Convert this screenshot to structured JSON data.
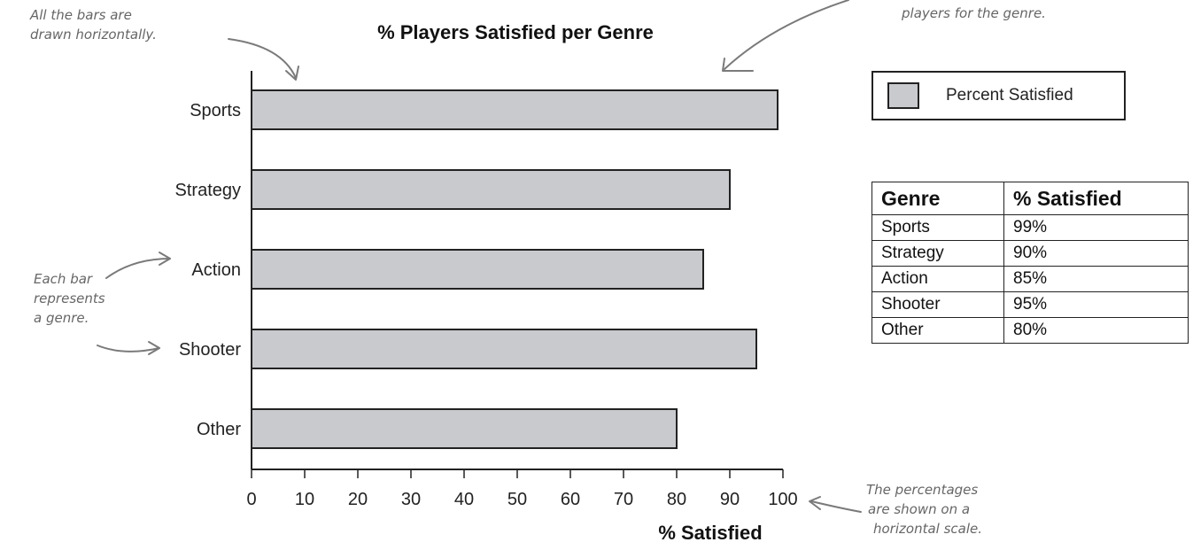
{
  "chart_data": {
    "type": "bar",
    "orientation": "horizontal",
    "title": "% Players Satisfied per Genre",
    "xlabel": "% Satisfied",
    "categories": [
      "Sports",
      "Strategy",
      "Action",
      "Shooter",
      "Other"
    ],
    "series": [
      {
        "name": "Percent Satisfied",
        "values": [
          99,
          90,
          85,
          95,
          80
        ]
      }
    ],
    "xlim": [
      0,
      100
    ],
    "xticks": [
      0,
      10,
      20,
      30,
      40,
      50,
      60,
      70,
      80,
      90,
      100
    ],
    "grid": false,
    "legend_position": "top-right",
    "bar_color": "#c9cacd",
    "edge_color": "#222222"
  },
  "legend": {
    "label": "Percent Satisfied"
  },
  "table": {
    "headers": [
      "Genre",
      "% Satisfied"
    ],
    "rows": [
      [
        "Sports",
        "99%"
      ],
      [
        "Strategy",
        "90%"
      ],
      [
        "Action",
        "85%"
      ],
      [
        "Shooter",
        "95%"
      ],
      [
        "Other",
        "80%"
      ]
    ]
  },
  "annotations": {
    "horizontal_bars": [
      "All the bars are",
      "drawn horizontally."
    ],
    "bar_length": [
      "players for the genre."
    ],
    "genre": [
      "Each bar",
      "represents",
      "a genre."
    ],
    "scale": [
      "The percentages",
      "are shown on a",
      "horizontal scale."
    ]
  }
}
